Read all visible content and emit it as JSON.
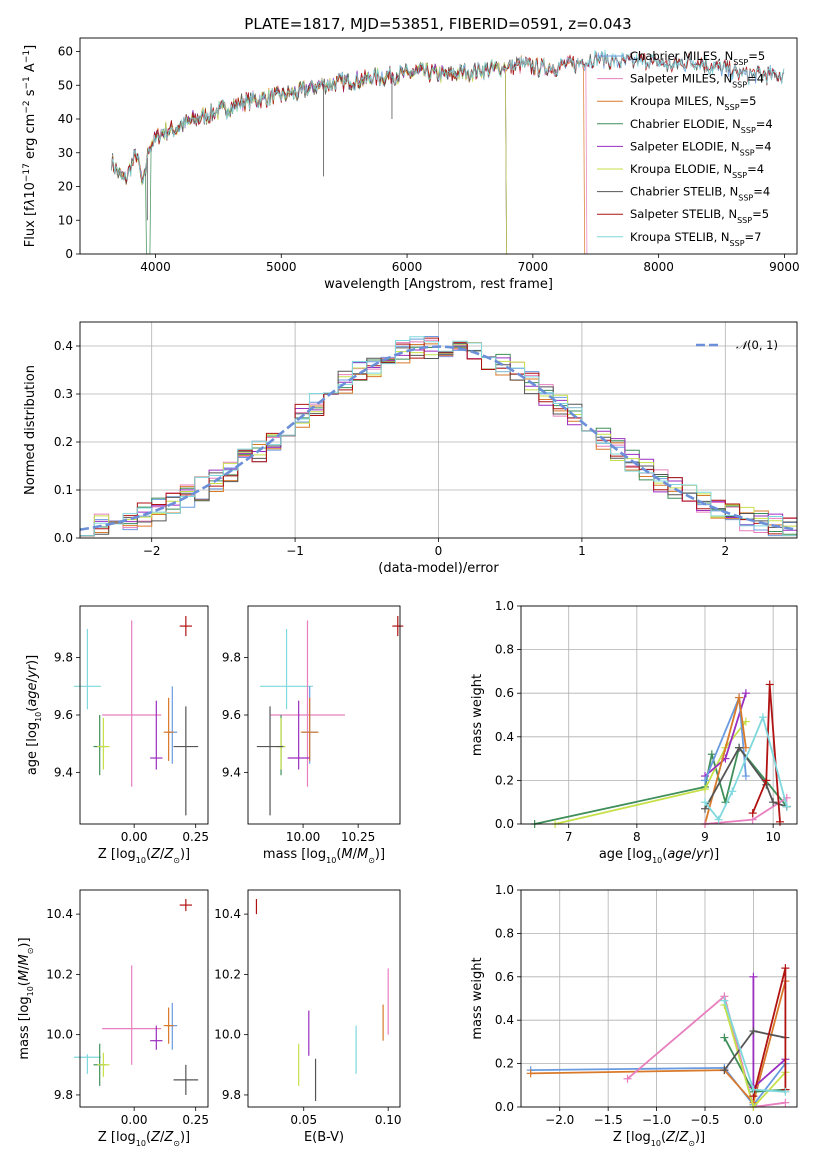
{
  "title": "PLATE=1817, MJD=53851, FIBERID=0591, z=0.043",
  "colors": {
    "Chabrier MILES": "#6a9be0",
    "Salpeter MILES": "#e87fbf",
    "Kroupa MILES": "#d9792a",
    "Chabrier ELODIE": "#3f8f5a",
    "Salpeter ELODIE": "#9a2ec0",
    "Kroupa ELODIE": "#c6e04a",
    "Chabrier STELIB": "#555555",
    "Salpeter STELIB": "#b01212",
    "Kroupa STELIB": "#7fd8dd"
  },
  "chart_data": [
    {
      "id": "spectrum",
      "type": "line",
      "xlabel": "wavelength [Angstrom, rest frame]",
      "ylabel_html": "Flux [f<tspan font-style='italic'>λ</tspan>10<tspan baseline-shift='super' font-size='9'>−17</tspan> erg cm<tspan baseline-shift='super' font-size='9'>−2</tspan> s<tspan baseline-shift='super' font-size='9'>−1</tspan> A<tspan baseline-shift='super' font-size='9'>−1</tspan>]",
      "xlim": [
        3400,
        9100
      ],
      "ylim": [
        0,
        64
      ],
      "xticks": [
        4000,
        5000,
        6000,
        7000,
        8000,
        9000
      ],
      "yticks": [
        0,
        10,
        20,
        30,
        40,
        50,
        60
      ],
      "grid": false,
      "legend_position": "right",
      "continuum_x": [
        3650,
        3700,
        3760,
        3850,
        3900,
        3950,
        4050,
        4150,
        4250,
        4400,
        4550,
        4700,
        4850,
        5000,
        5150,
        5300,
        5500,
        5700,
        5900,
        6100,
        6300,
        6500,
        6700,
        6900,
        7100,
        7300,
        7500,
        7700,
        7900,
        8100,
        8300,
        8500,
        8700
      ],
      "continuum_y": [
        28,
        24,
        22,
        30,
        20,
        32,
        36,
        37,
        39,
        41,
        43,
        45,
        46,
        47,
        48,
        50,
        51,
        52,
        53,
        54,
        53,
        54,
        55,
        56,
        55,
        56,
        58,
        57,
        57,
        56,
        57,
        55,
        53
      ],
      "series": [
        {
          "name": "Chabrier MILES, N_SSP=5",
          "label_html": "Chabrier MILES, N<tspan baseline-shift='sub' font-size='8'>SSP</tspan>=5",
          "x_end": 9000,
          "drop_at": null
        },
        {
          "name": "Salpeter MILES, N_SSP=4",
          "label_html": "Salpeter MILES, N<tspan baseline-shift='sub' font-size='8'>SSP</tspan>=4",
          "x_end": 7450,
          "drop_at": 7430
        },
        {
          "name": "Kroupa MILES, N_SSP=5",
          "label_html": "Kroupa MILES, N<tspan baseline-shift='sub' font-size='8'>SSP</tspan>=5",
          "x_end": 7420,
          "drop_at": 7410
        },
        {
          "name": "Chabrier ELODIE, N_SSP=4",
          "label_html": "Chabrier ELODIE, N<tspan baseline-shift='sub' font-size='8'>SSP</tspan>=4",
          "x_end": 6800,
          "drop_at": 6790
        },
        {
          "name": "Salpeter ELODIE, N_SSP=4",
          "label_html": "Salpeter ELODIE, N<tspan baseline-shift='sub' font-size='8'>SSP</tspan>=4",
          "x_end": 6800,
          "drop_at": 6790
        },
        {
          "name": "Kroupa ELODIE, N_SSP=4",
          "label_html": "Kroupa ELODIE, N<tspan baseline-shift='sub' font-size='8'>SSP</tspan>=4",
          "x_end": 6800,
          "drop_at": 6785
        },
        {
          "name": "Chabrier STELIB, N_SSP=4",
          "label_html": "Chabrier STELIB, N<tspan baseline-shift='sub' font-size='8'>SSP</tspan>=4",
          "x_end": 9000,
          "drop_at": null
        },
        {
          "name": "Salpeter STELIB, N_SSP=5",
          "label_html": "Salpeter STELIB, N<tspan baseline-shift='sub' font-size='8'>SSP</tspan>=5",
          "x_end": 9000,
          "drop_at": null
        },
        {
          "name": "Kroupa STELIB, N_SSP=7",
          "label_html": "Kroupa STELIB, N<tspan baseline-shift='sub' font-size='8'>SSP</tspan>=7",
          "x_end": 9000,
          "drop_at": null
        }
      ]
    },
    {
      "id": "residual-distribution",
      "type": "histogram",
      "xlabel": "(data-model)/error",
      "ylabel": "Normed distribution",
      "xlim": [
        -2.5,
        2.5
      ],
      "ylim": [
        0,
        0.45
      ],
      "xticks": [
        -2,
        -1,
        0,
        1,
        2
      ],
      "yticks": [
        0.0,
        0.1,
        0.2,
        0.3,
        0.4
      ],
      "grid": true,
      "legend_position": "top-right",
      "gaussian_label_html": "<tspan font-style='italic'>𝒩</tspan>(0, 1)",
      "bin_width": 0.1,
      "bin_start": -2.5
    },
    {
      "id": "age-vs-Z",
      "type": "scatter",
      "xlabel_html": "Z [log<tspan baseline-shift='sub' font-size='8'>10</tspan>(<tspan font-style='italic'>Z</tspan>/<tspan font-style='italic'>Z</tspan><tspan baseline-shift='sub' font-size='8'>⊙</tspan>)]",
      "ylabel_html": "age  [log<tspan baseline-shift='sub' font-size='8'>10</tspan>(<tspan font-style='italic'>age</tspan>/<tspan font-style='italic'>yr</tspan>)]",
      "xlim": [
        -0.22,
        0.3
      ],
      "ylim": [
        9.22,
        9.98
      ],
      "xticks": [
        0.0,
        0.25
      ],
      "yticks": [
        9.4,
        9.6,
        9.8
      ],
      "grid": false
    },
    {
      "id": "age-vs-mass",
      "type": "scatter",
      "xlabel_html": "mass [log<tspan baseline-shift='sub' font-size='8'>10</tspan>(<tspan font-style='italic'>M</tspan>/<tspan font-style='italic'>M</tspan><tspan baseline-shift='sub' font-size='8'>⊙</tspan>)]",
      "xlim": [
        9.75,
        10.44
      ],
      "ylim": [
        9.22,
        9.98
      ],
      "xticks": [
        10.0,
        10.25
      ],
      "yticks": [
        9.4,
        9.6,
        9.8
      ],
      "grid": false
    },
    {
      "id": "massweight-vs-age",
      "type": "line",
      "xlabel_html": "age  [log<tspan baseline-shift='sub' font-size='8'>10</tspan>(<tspan font-style='italic'>age</tspan>/<tspan font-style='italic'>yr</tspan>)]",
      "ylabel": "mass weight",
      "xlim": [
        6.3,
        10.35
      ],
      "ylim": [
        0,
        1
      ],
      "xticks": [
        7,
        8,
        9,
        10
      ],
      "yticks": [
        0.0,
        0.2,
        0.4,
        0.6,
        0.8,
        1.0
      ],
      "grid": true,
      "series": [
        {
          "model": "Chabrier ELODIE",
          "x": [
            6.5,
            9.0,
            9.1,
            9.3,
            9.5,
            10.2
          ],
          "y": [
            0.0,
            0.17,
            0.32,
            0.1,
            0.35,
            0.08
          ]
        },
        {
          "model": "Kroupa ELODIE",
          "x": [
            6.8,
            9.0,
            9.3,
            9.6
          ],
          "y": [
            0.0,
            0.16,
            0.35,
            0.47
          ]
        },
        {
          "model": "Salpeter ELODIE",
          "x": [
            9.0,
            9.3,
            9.6
          ],
          "y": [
            0.22,
            0.3,
            0.6
          ]
        },
        {
          "model": "Chabrier MILES",
          "x": [
            9.0,
            9.5,
            9.6
          ],
          "y": [
            0.2,
            0.58,
            0.22
          ]
        },
        {
          "model": "Kroupa MILES",
          "x": [
            9.0,
            9.5,
            9.6
          ],
          "y": [
            0.0,
            0.58,
            0.35
          ]
        },
        {
          "model": "Salpeter MILES",
          "x": [
            9.0,
            9.7,
            10.2
          ],
          "y": [
            0.0,
            0.02,
            0.12
          ]
        },
        {
          "model": "Chabrier STELIB",
          "x": [
            9.0,
            9.5,
            9.9,
            10.0,
            10.2
          ],
          "y": [
            0.07,
            0.35,
            0.18,
            0.1,
            0.08
          ]
        },
        {
          "model": "Salpeter STELIB",
          "x": [
            9.7,
            9.9,
            9.95,
            10.1
          ],
          "y": [
            0.05,
            0.2,
            0.64,
            0.01
          ]
        },
        {
          "model": "Kroupa STELIB",
          "x": [
            9.0,
            9.2,
            9.4,
            9.85,
            10.2
          ],
          "y": [
            0.1,
            0.02,
            0.15,
            0.49,
            0.08
          ]
        }
      ]
    },
    {
      "id": "mass-vs-Z",
      "type": "scatter",
      "xlabel_html": "Z [log<tspan baseline-shift='sub' font-size='8'>10</tspan>(<tspan font-style='italic'>Z</tspan>/<tspan font-style='italic'>Z</tspan><tspan baseline-shift='sub' font-size='8'>⊙</tspan>)]",
      "ylabel_html": "mass [log<tspan baseline-shift='sub' font-size='8'>10</tspan>(<tspan font-style='italic'>M</tspan>/<tspan font-style='italic'>M</tspan><tspan baseline-shift='sub' font-size='8'>⊙</tspan>)]",
      "xlim": [
        -0.22,
        0.3
      ],
      "ylim": [
        9.76,
        10.48
      ],
      "xticks": [
        0.0,
        0.25
      ],
      "yticks": [
        9.8,
        10.0,
        10.2,
        10.4
      ],
      "grid": false
    },
    {
      "id": "mass-vs-EBV",
      "type": "scatter",
      "xlabel": "E(B-V)",
      "xlim": [
        0.017,
        0.107
      ],
      "ylim": [
        9.76,
        10.48
      ],
      "xticks": [
        0.05,
        0.1
      ],
      "xtick_labels": [
        "0.05",
        "0.10"
      ],
      "yticks": [
        9.8,
        10.0,
        10.2,
        10.4
      ],
      "grid": false,
      "points": [
        {
          "model": "Salpeter STELIB",
          "x": 0.022,
          "mass_range": [
            10.4,
            10.45
          ]
        },
        {
          "model": "Kroupa ELODIE",
          "x": 0.047,
          "mass_range": [
            9.83,
            9.97
          ]
        },
        {
          "model": "Salpeter ELODIE",
          "x": 0.053,
          "mass_range": [
            9.93,
            10.08
          ]
        },
        {
          "model": "Chabrier STELIB",
          "x": 0.057,
          "mass_range": [
            9.78,
            9.92
          ]
        },
        {
          "model": "Kroupa STELIB",
          "x": 0.081,
          "mass_range": [
            9.87,
            10.03
          ]
        },
        {
          "model": "Kroupa MILES",
          "x": 0.097,
          "mass_range": [
            9.98,
            10.1
          ]
        },
        {
          "model": "Salpeter MILES",
          "x": 0.1,
          "mass_range": [
            10.0,
            10.22
          ]
        }
      ]
    },
    {
      "id": "massweight-vs-Z",
      "type": "line",
      "xlabel_html": "Z [log<tspan baseline-shift='sub' font-size='8'>10</tspan>(<tspan font-style='italic'>Z</tspan>/<tspan font-style='italic'>Z</tspan><tspan baseline-shift='sub' font-size='8'>⊙</tspan>)]",
      "ylabel": "mass weight",
      "xlim": [
        -2.4,
        0.45
      ],
      "ylim": [
        0,
        1
      ],
      "xticks": [
        -2.0,
        -1.5,
        -1.0,
        -0.5,
        0.0
      ],
      "xtick_labels": [
        "−2.0",
        "−1.5",
        "−1.0",
        "−0.5",
        "0.0"
      ],
      "yticks": [
        0.0,
        0.2,
        0.4,
        0.6,
        0.8,
        1.0
      ],
      "grid": true,
      "series": [
        {
          "model": "Chabrier MILES",
          "x": [
            -2.3,
            -0.3,
            0.0,
            0.33
          ],
          "y": [
            0.17,
            0.18,
            0.01,
            0.2
          ]
        },
        {
          "model": "Kroupa MILES",
          "x": [
            -2.3,
            -0.3,
            0.0,
            0.33
          ],
          "y": [
            0.155,
            0.17,
            0.02,
            0.58
          ]
        },
        {
          "model": "Salpeter MILES",
          "x": [
            -1.3,
            -0.3,
            0.0,
            0.33
          ],
          "y": [
            0.13,
            0.51,
            0.0,
            0.02
          ]
        },
        {
          "model": "Chabrier ELODIE",
          "x": [
            -0.3,
            0.0,
            0.33
          ],
          "y": [
            0.32,
            0.07,
            0.08
          ]
        },
        {
          "model": "Salpeter ELODIE",
          "x": [
            0.0,
            0.0,
            0.33
          ],
          "y": [
            0.6,
            0.09,
            0.22
          ]
        },
        {
          "model": "Kroupa ELODIE",
          "x": [
            -0.3,
            0.0,
            0.33
          ],
          "y": [
            0.47,
            0.0,
            0.16
          ]
        },
        {
          "model": "Chabrier STELIB",
          "x": [
            -0.3,
            0.0,
            0.33
          ],
          "y": [
            0.17,
            0.35,
            0.32
          ]
        },
        {
          "model": "Salpeter STELIB",
          "x": [
            0.0,
            0.33,
            0.33
          ],
          "y": [
            0.05,
            0.64,
            0.08
          ]
        },
        {
          "model": "Kroupa STELIB",
          "x": [
            -0.3,
            0.0,
            0.33
          ],
          "y": [
            0.49,
            0.08,
            0.07
          ]
        }
      ]
    }
  ],
  "scatter_points": [
    {
      "model": "Salpeter STELIB",
      "Z": 0.21,
      "Zerr": 0.025,
      "age": 9.91,
      "ageerr": [
        0.035,
        0.035
      ],
      "mass": 10.43,
      "masserr": [
        0.02,
        0.02
      ],
      "merr": 0.025
    },
    {
      "model": "Kroupa STELIB",
      "Z": -0.19,
      "Zerr": 0.055,
      "age": 9.7,
      "ageerr": [
        0.08,
        0.2
      ],
      "mass": 9.925,
      "masserr": [
        0.055,
        0.01
      ],
      "merr": 0.12
    },
    {
      "model": "Salpeter MILES",
      "Z": -0.01,
      "Zerr": 0.12,
      "age": 9.6,
      "ageerr": [
        0.25,
        0.33
      ],
      "mass": 10.02,
      "masserr": [
        0.12,
        0.21
      ],
      "merr": 0.17
    },
    {
      "model": "Chabrier MILES",
      "Z": 0.155,
      "Zerr": 0.02,
      "age": 9.54,
      "ageerr": [
        0.11,
        0.16
      ],
      "mass": 10.03,
      "masserr": [
        0.08,
        0.075
      ],
      "merr": 0.035
    },
    {
      "model": "Kroupa MILES",
      "Z": 0.14,
      "Zerr": 0.02,
      "age": 9.54,
      "ageerr": [
        0.1,
        0.12
      ],
      "mass": 10.03,
      "masserr": [
        0.06,
        0.06
      ],
      "merr": 0.04
    },
    {
      "model": "Salpeter ELODIE",
      "Z": 0.09,
      "Zerr": 0.025,
      "age": 9.45,
      "ageerr": [
        0.04,
        0.2
      ],
      "mass": 9.98,
      "masserr": [
        0.03,
        0.05
      ],
      "merr": 0.05
    },
    {
      "model": "Chabrier ELODIE",
      "Z": -0.14,
      "Zerr": 0.025,
      "age": 9.49,
      "ageerr": [
        0.1,
        0.11
      ],
      "mass": 9.9,
      "masserr": [
        0.07,
        0.07
      ],
      "merr": 0.02
    },
    {
      "model": "Kroupa ELODIE",
      "Z": -0.125,
      "Zerr": 0.025,
      "age": 9.49,
      "ageerr": [
        0.08,
        0.1
      ],
      "mass": 9.9,
      "masserr": [
        0.04,
        0.04
      ],
      "merr": 0.02
    },
    {
      "model": "Chabrier STELIB",
      "Z": 0.21,
      "Zerr": 0.05,
      "age": 9.49,
      "ageerr": [
        0.24,
        0.14
      ],
      "mass": 9.85,
      "masserr": [
        0.05,
        0.05
      ],
      "merr": 0.06
    }
  ]
}
